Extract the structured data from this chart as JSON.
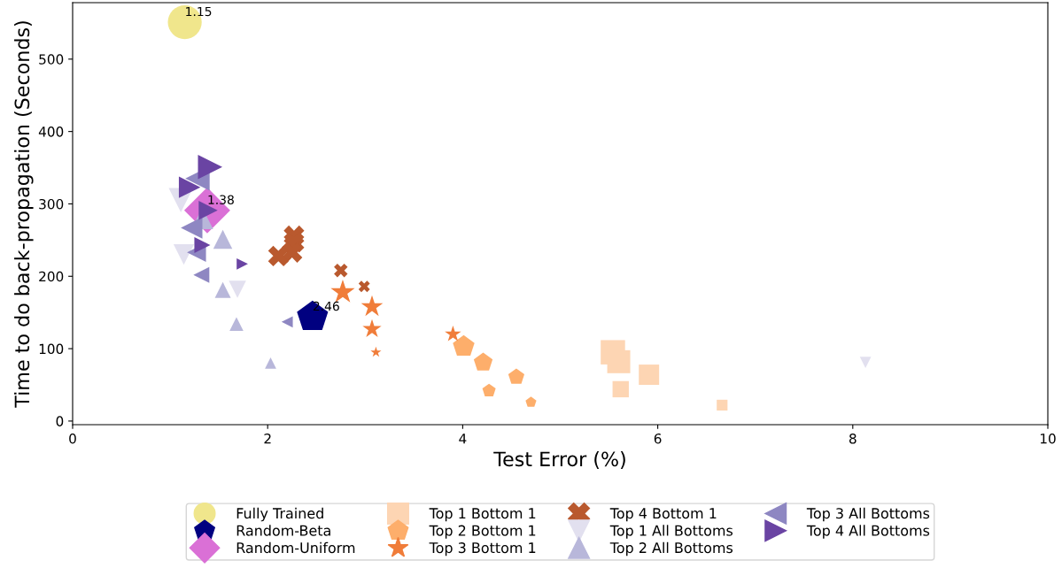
{
  "chart_data": {
    "type": "bubble",
    "xlabel": "Test Error (%)",
    "ylabel": "Time to do back-propagation (Seconds)",
    "xlim": [
      0,
      10
    ],
    "xticks": [
      0,
      2,
      4,
      6,
      8,
      10
    ],
    "ylim": [
      -5,
      578
    ],
    "yticks": [
      0,
      100,
      200,
      300,
      400,
      500
    ],
    "grid": false,
    "legend": "bottom",
    "series": [
      {
        "name": "Fully Trained",
        "color": "#f0e68c",
        "marker": "circle",
        "x": [
          1.15
        ],
        "values": [
          551
        ],
        "sizes": [
          0.85
        ]
      },
      {
        "name": "Random-Beta",
        "color": "#000080",
        "x": [
          2.46
        ],
        "values": [
          144
        ],
        "sizes": [
          0.6
        ]
      },
      {
        "name": "Random-Uniform",
        "color": "#da70d6",
        "marker": "diamond",
        "x": [
          1.38
        ],
        "values": [
          291
        ],
        "sizes": [
          1.0
        ]
      },
      {
        "name": "Top 1 Bottom 1",
        "color": "#fdd5b3",
        "marker": "square",
        "x": [
          5.54,
          5.6,
          5.91,
          5.62,
          6.66
        ],
        "values": [
          95,
          82,
          64,
          44,
          22
        ],
        "sizes": [
          0.56,
          0.5,
          0.39,
          0.25,
          0.11
        ]
      },
      {
        "name": "Top 2 Bottom 1",
        "color": "#fdae6b",
        "x": [
          4.01,
          4.21,
          4.55,
          4.27,
          4.7
        ],
        "values": [
          103,
          81,
          61,
          42,
          26
        ],
        "sizes": [
          0.29,
          0.22,
          0.16,
          0.11,
          0.073
        ]
      },
      {
        "name": "Top 3 Bottom 1",
        "color": "#f07d3a",
        "marker": "star",
        "x": [
          2.77,
          3.07,
          3.07,
          3.9,
          3.11
        ],
        "values": [
          178,
          158,
          127,
          120,
          95
        ],
        "sizes": [
          0.17,
          0.14,
          0.105,
          0.078,
          0.034
        ]
      },
      {
        "name": "Top 4 Bottom 1",
        "color": "#b9592e",
        "marker": "cross",
        "x": [
          2.27,
          2.27,
          2.25,
          2.11,
          2.75,
          2.99
        ],
        "values": [
          256,
          247,
          233,
          228,
          208,
          186
        ],
        "sizes": [
          0.25,
          0.25,
          0.25,
          0.25,
          0.11,
          0.076
        ]
      },
      {
        "name": "Top 1 All Bottoms",
        "color": "#e2e0ef",
        "x": [
          1.11,
          1.14,
          1.69,
          8.13
        ],
        "values": [
          305,
          230,
          182,
          81
        ],
        "sizes": [
          0.28,
          0.2,
          0.14,
          0.06
        ]
      },
      {
        "name": "Top 2 All Bottoms",
        "color": "#b8b7da",
        "marker": "triangle",
        "x": [
          1.33,
          1.54,
          1.54,
          1.68,
          2.03
        ],
        "values": [
          280,
          251,
          181,
          134,
          80
        ],
        "sizes": [
          0.22,
          0.17,
          0.12,
          0.09,
          0.06
        ]
      },
      {
        "name": "Top 3 All Bottoms",
        "color": "#8e87c2",
        "x": [
          1.28,
          1.22,
          1.27,
          1.32,
          2.2
        ],
        "values": [
          335,
          267,
          233,
          202,
          137
        ],
        "sizes": [
          0.28,
          0.22,
          0.17,
          0.12,
          0.06
        ]
      },
      {
        "name": "Top 4 All Bottoms",
        "color": "#6a44a3",
        "x": [
          1.41,
          1.2,
          1.39,
          1.33,
          1.74
        ],
        "values": [
          351,
          323,
          291,
          243,
          217
        ],
        "sizes": [
          0.28,
          0.22,
          0.17,
          0.12,
          0.06
        ]
      }
    ],
    "annotations": [
      {
        "text": "1.15",
        "x": 1.15,
        "y": 551
      },
      {
        "text": "1.38",
        "x": 1.38,
        "y": 291
      },
      {
        "text": "2.46",
        "x": 2.46,
        "y": 144
      }
    ]
  }
}
